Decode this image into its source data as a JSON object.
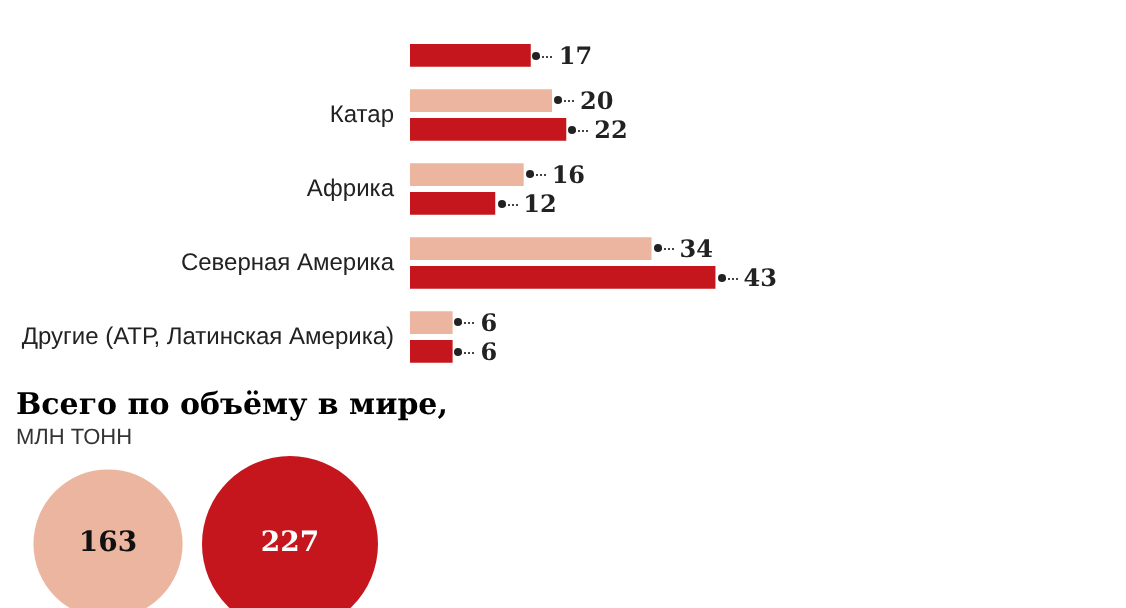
{
  "chart_data": [
    {
      "type": "bar",
      "orientation": "horizontal",
      "categories": [
        null,
        "Катар",
        "Африка",
        "Северная Америка",
        "Другие (АТР, Латинская Америка)"
      ],
      "series": [
        {
          "color": "#ebb5a0",
          "values": [
            null,
            20,
            16,
            34,
            6
          ]
        },
        {
          "color": "#c4161c",
          "values": [
            17,
            22,
            12,
            43,
            6
          ]
        }
      ],
      "data_labels": true,
      "legend": false,
      "tick_labels": false
    },
    {
      "type": "other",
      "title": "Всего по объёму в мире,",
      "subtitle": "МЛН ТОНН",
      "categories": [
        null,
        null
      ],
      "values": [
        163,
        227
      ],
      "colors": [
        "#ebb5a0",
        "#c4161c"
      ],
      "data_labels": true
    }
  ]
}
